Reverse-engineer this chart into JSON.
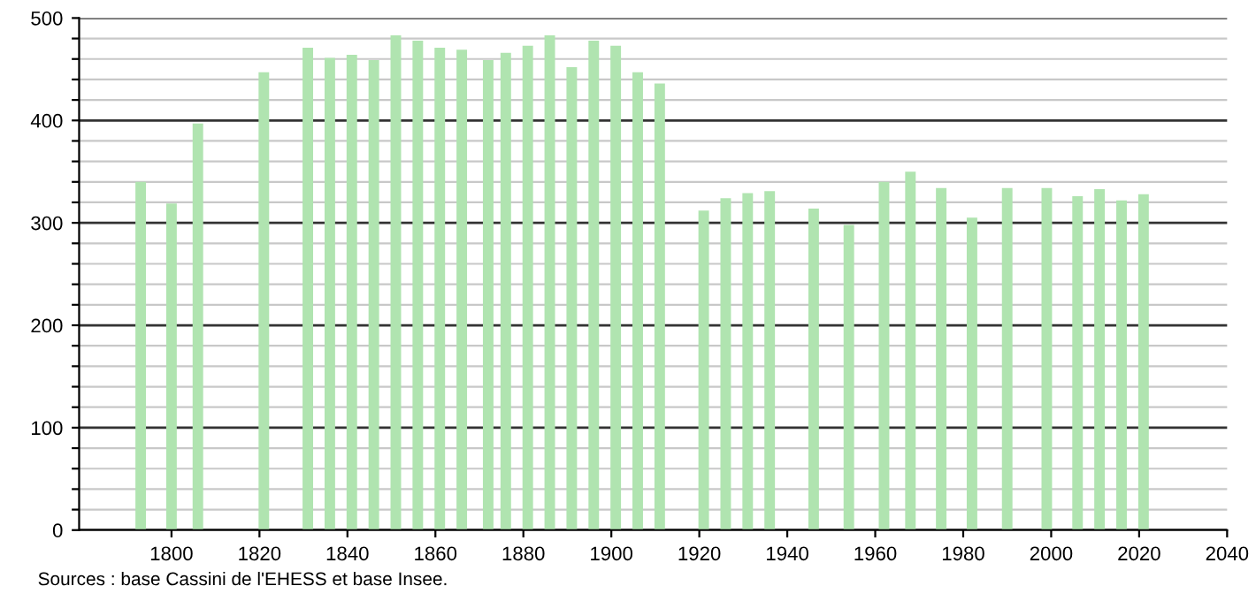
{
  "chart_data": {
    "type": "bar",
    "x": [
      1793,
      1800,
      1806,
      1821,
      1831,
      1836,
      1841,
      1846,
      1851,
      1856,
      1861,
      1866,
      1872,
      1876,
      1881,
      1886,
      1891,
      1896,
      1901,
      1906,
      1911,
      1921,
      1926,
      1931,
      1936,
      1946,
      1954,
      1962,
      1968,
      1975,
      1982,
      1990,
      1999,
      2006,
      2011,
      2016,
      2021
    ],
    "values": [
      340,
      319,
      397,
      447,
      471,
      461,
      464,
      459,
      483,
      478,
      471,
      469,
      459,
      466,
      473,
      483,
      452,
      478,
      473,
      447,
      436,
      312,
      324,
      329,
      331,
      314,
      298,
      340,
      350,
      334,
      305,
      334,
      334,
      326,
      333,
      322,
      328
    ],
    "color": "#b0e4b0",
    "xlim": [
      1779,
      2040
    ],
    "xticks": [
      1800,
      1820,
      1840,
      1860,
      1880,
      1900,
      1920,
      1940,
      1960,
      1980,
      2000,
      2020,
      2040
    ],
    "ylim": [
      0,
      500
    ],
    "yticks": [
      0,
      {
        "value": 20,
        "label": null
      },
      {
        "value": 40,
        "label": null
      },
      {
        "value": 60,
        "label": null
      },
      {
        "value": 80,
        "label": null
      },
      100,
      {
        "value": 120,
        "label": null
      },
      {
        "value": 140,
        "label": null
      },
      {
        "value": 160,
        "label": null
      },
      {
        "value": 180,
        "label": null
      },
      200,
      {
        "value": 220,
        "label": null
      },
      {
        "value": 240,
        "label": null
      },
      {
        "value": 260,
        "label": null
      },
      {
        "value": 280,
        "label": null
      },
      300,
      {
        "value": 320,
        "label": null
      },
      {
        "value": 340,
        "label": null
      },
      {
        "value": 360,
        "label": null
      },
      {
        "value": 380,
        "label": null
      },
      400,
      {
        "value": 420,
        "label": null
      },
      {
        "value": 440,
        "label": null
      },
      {
        "value": 460,
        "label": null
      },
      {
        "value": 480,
        "label": null
      },
      500
    ],
    "grid": "y",
    "annotations": [
      "Sources : base Cassini de l'EHESS et base Insee."
    ]
  }
}
